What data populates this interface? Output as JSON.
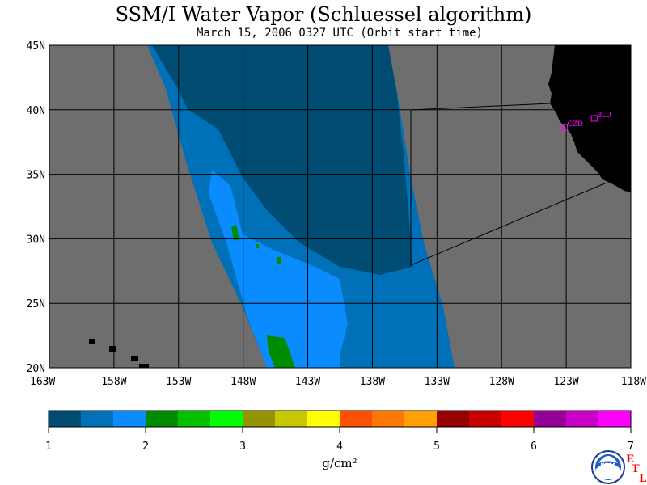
{
  "title": "SSM/I Water Vapor (Schluessel algorithm)",
  "subtitle": "March 15, 2006  0327 UTC  (Orbit start time)",
  "lat_labels": [
    "45N",
    "40N",
    "35N",
    "30N",
    "25N",
    "20N"
  ],
  "lon_labels": [
    "163W",
    "158W",
    "153W",
    "148W",
    "143W",
    "138W",
    "133W",
    "128W",
    "123W",
    "118W"
  ],
  "stations": [
    {
      "id": "CZD",
      "label": "CZD",
      "lon": -123.1,
      "lat": 38.6
    },
    {
      "id": "BLU",
      "label": "BLU",
      "lon": -120.8,
      "lat": 39.3
    }
  ],
  "colorbar": {
    "ticks": [
      "1",
      "2",
      "3",
      "4",
      "5",
      "6",
      "7"
    ],
    "colors": [
      "#004c73",
      "#0070b8",
      "#0a8cff",
      "#008c00",
      "#00c000",
      "#00ff00",
      "#949400",
      "#c8c800",
      "#ffff00",
      "#ff5000",
      "#ff7800",
      "#ffa000",
      "#960000",
      "#c80000",
      "#ff0000",
      "#960096",
      "#c800c8",
      "#ff00ff"
    ],
    "unit": "g/cm²"
  },
  "colors": {
    "no_data": "#6e6e6e",
    "land": "#000000",
    "grid": "#000000"
  },
  "logo": {
    "text": "NOAA",
    "etl_letters": [
      "E",
      "T",
      "L"
    ]
  }
}
